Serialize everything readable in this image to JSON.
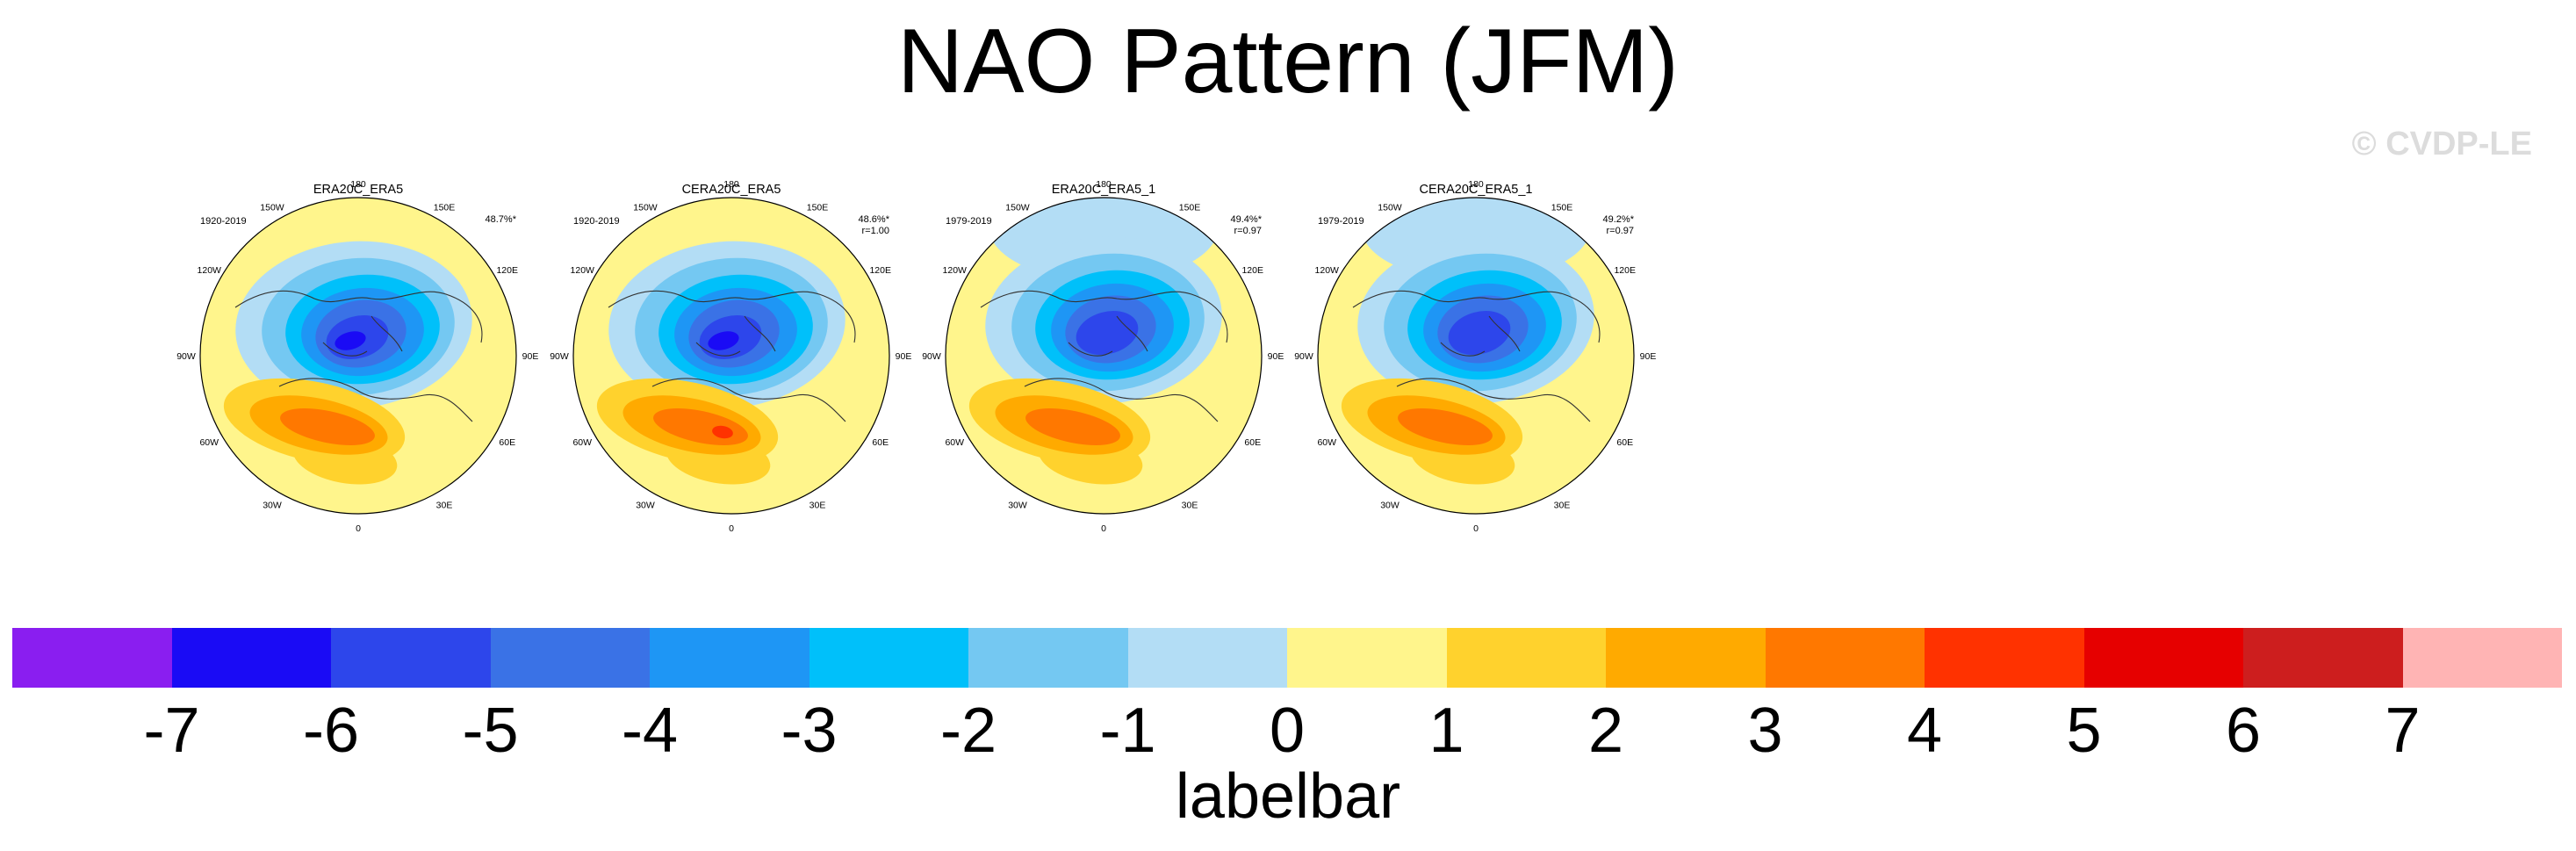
{
  "title": "NAO Pattern (JFM)",
  "watermark": "© CVDP-LE",
  "panels": [
    {
      "title": "ERA20C_ERA5",
      "years": "1920-2019",
      "pct": "48.7%*",
      "r": "",
      "variant": 0
    },
    {
      "title": "CERA20C_ERA5",
      "years": "1920-2019",
      "pct": "48.6%*",
      "r": "r=1.00",
      "variant": 1
    },
    {
      "title": "ERA20C_ERA5_1",
      "years": "1979-2019",
      "pct": "49.4%*",
      "r": "r=0.97",
      "variant": 2
    },
    {
      "title": "CERA20C_ERA5_1",
      "years": "1979-2019",
      "pct": "49.2%*",
      "r": "r=0.97",
      "variant": 3
    }
  ],
  "lon_labels": [
    "180",
    "150E",
    "120E",
    "90E",
    "60E",
    "30E",
    "0",
    "30W",
    "60W",
    "90W",
    "120W",
    "150W"
  ],
  "colorbar": {
    "label": "labelbar",
    "ticks": [
      "-7",
      "-6",
      "-5",
      "-4",
      "-3",
      "-2",
      "-1",
      "0",
      "1",
      "2",
      "3",
      "4",
      "5",
      "6",
      "7"
    ],
    "colors": [
      "#8a1ef0",
      "#1a0bf5",
      "#2d46eb",
      "#3a72e6",
      "#1e96f5",
      "#00c0fa",
      "#74c8f2",
      "#b3ddf5",
      "#fff58c",
      "#ffd22d",
      "#ffaa00",
      "#ff7800",
      "#ff3200",
      "#e60000",
      "#cd1e1e",
      "#ffb4b4"
    ]
  }
}
